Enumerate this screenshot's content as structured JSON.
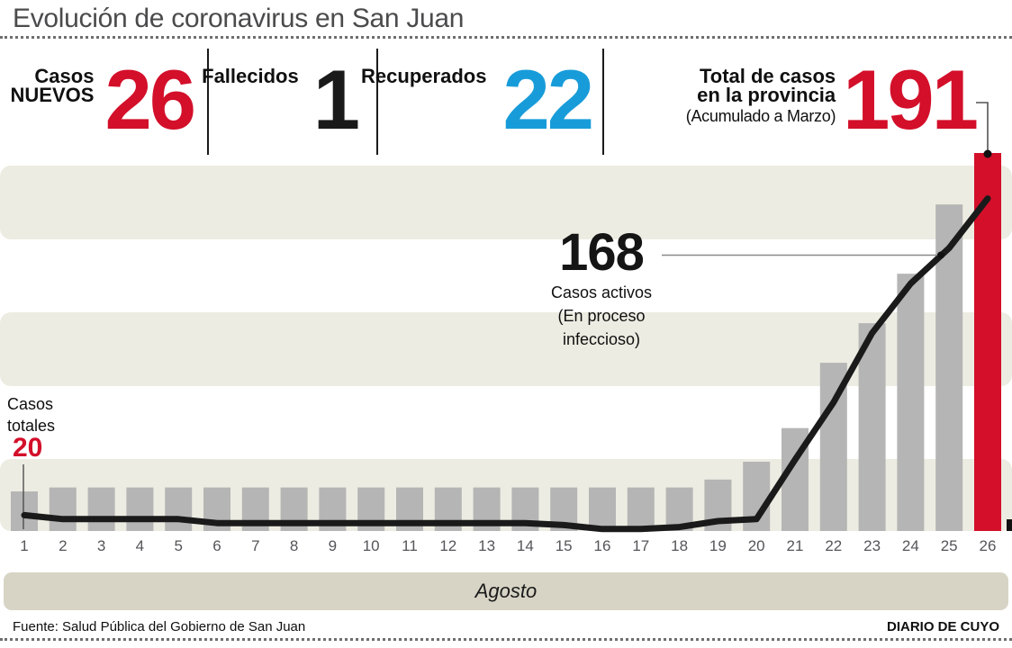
{
  "title": "Evolución de coronavirus en San Juan",
  "colors": {
    "red": "#d30f2a",
    "blue": "#189cd9",
    "dark": "#1a1a1a",
    "bar_gray": "#b5b5b5",
    "stripe_beige": "#edece2",
    "month_band": "#d7d4c5",
    "title_gray": "#4b4b4d"
  },
  "stats": {
    "new_cases": {
      "label_line1": "Casos",
      "label_line2": "NUEVOS",
      "value": "26"
    },
    "deaths": {
      "label": "Fallecidos",
      "value": "1"
    },
    "recovered": {
      "label": "Recuperados",
      "value": "22"
    },
    "total": {
      "label_line1": "Total de casos",
      "label_line2": "en la provincia",
      "sublabel": "(Acumulado a Marzo)",
      "value": "191"
    }
  },
  "chart_data": {
    "type": "bar",
    "title": "Evolución de coronavirus en San Juan",
    "xlabel": "Agosto",
    "ylabel": "",
    "ylim": [
      0,
      196
    ],
    "grid": false,
    "legend_position": "none",
    "categories": [
      "1",
      "2",
      "3",
      "4",
      "5",
      "6",
      "7",
      "8",
      "9",
      "10",
      "11",
      "12",
      "13",
      "14",
      "15",
      "16",
      "17",
      "18",
      "19",
      "20",
      "21",
      "22",
      "23",
      "24",
      "25",
      "26"
    ],
    "series": [
      {
        "name": "Casos totales (acumulado)",
        "type": "bar",
        "values": [
          20,
          22,
          22,
          22,
          22,
          22,
          22,
          22,
          22,
          22,
          22,
          22,
          22,
          22,
          22,
          22,
          22,
          22,
          26,
          35,
          52,
          85,
          105,
          130,
          165,
          191
        ]
      },
      {
        "name": "Casos activos",
        "type": "line",
        "values": [
          8,
          6,
          6,
          6,
          6,
          4,
          4,
          4,
          4,
          4,
          4,
          4,
          4,
          4,
          3,
          1,
          1,
          2,
          5,
          6,
          36,
          65,
          100,
          125,
          143,
          168
        ]
      }
    ],
    "highlight_category": "26",
    "colors": {
      "bars": "#b5b5b5",
      "highlight": "#d30f2a",
      "line": "#1a1a1a",
      "stripes": "#edece2"
    },
    "annotations": {
      "totals_start": {
        "line1": "Casos",
        "line2": "totales",
        "value": "20"
      },
      "active": {
        "value": "168",
        "caption_line1": "Casos activos",
        "caption_line2": "(En proceso",
        "caption_line3": "infeccioso)"
      }
    }
  },
  "footer": {
    "source": "Fuente: Salud Pública del Gobierno de San Juan",
    "brand": "DIARIO DE CUYO"
  }
}
